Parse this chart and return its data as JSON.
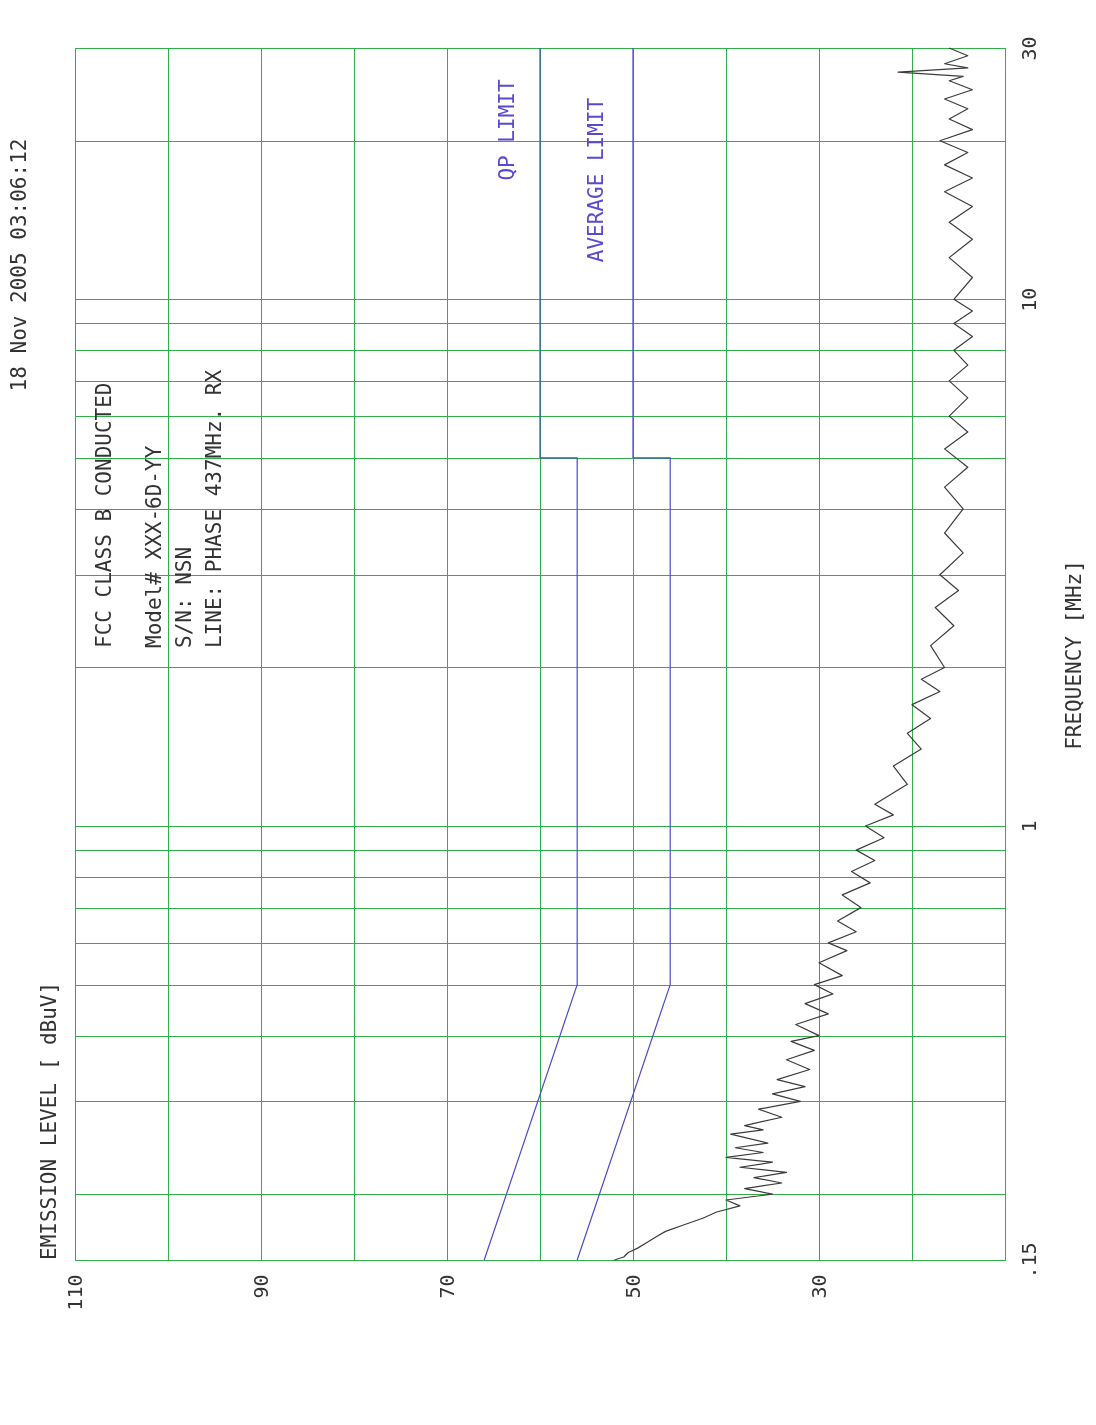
{
  "chart_data": {
    "type": "line",
    "subtitle": "18 Nov 2005   03:06:12",
    "title": "EMISSION LEVEL  [ dBuV]",
    "ylabel": "FREQUENCY  [MHz]",
    "annotations": [
      "FCC CLASS B      CONDUCTED",
      "Model# XXX-6D-YY",
      "S/N: NSN",
      "LINE:  PHASE     437MHz. RX",
      "QP LIMIT",
      "AVERAGE LIMIT"
    ],
    "log": "y",
    "grid": true,
    "marker": "none",
    "line_style": "solid",
    "ylim": [
      0.15,
      30
    ],
    "yticks": [
      {
        "value": 0.15,
        "label": ".15"
      },
      {
        "value": 0.2,
        "label": null
      },
      {
        "value": 0.3,
        "label": null
      },
      {
        "value": 0.4,
        "label": null
      },
      {
        "value": 0.5,
        "label": null
      },
      {
        "value": 0.6,
        "label": null
      },
      {
        "value": 0.7,
        "label": null
      },
      {
        "value": 0.8,
        "label": null
      },
      {
        "value": 0.9,
        "label": null
      },
      1,
      {
        "value": 2,
        "label": null
      },
      {
        "value": 3,
        "label": null
      },
      {
        "value": 4,
        "label": null
      },
      {
        "value": 5,
        "label": null
      },
      {
        "value": 6,
        "label": null
      },
      {
        "value": 7,
        "label": null
      },
      {
        "value": 8,
        "label": null
      },
      {
        "value": 9,
        "label": null
      },
      10,
      {
        "value": 20,
        "label": null
      },
      30
    ],
    "xlim": [
      110,
      10
    ],
    "xticks": [
      110,
      {
        "value": 100,
        "label": null
      },
      90,
      {
        "value": 80,
        "label": null
      },
      70,
      {
        "value": 60,
        "label": null
      },
      50,
      {
        "value": 40,
        "label": null
      },
      30,
      {
        "value": 20,
        "label": null
      },
      {
        "value": 10,
        "label": null
      }
    ],
    "series": [
      {
        "color": "#3c3c3c",
        "values": [
          0.15,
          0.152,
          0.155,
          0.158,
          0.162,
          0.166,
          0.17,
          0.175,
          0.18,
          0.185,
          0.19,
          0.195,
          0.2,
          0.205,
          0.21,
          0.215,
          0.22,
          0.225,
          0.23,
          0.235,
          0.24,
          0.245,
          0.25,
          0.26,
          0.265,
          0.27,
          0.28,
          0.29,
          0.3,
          0.31,
          0.32,
          0.33,
          0.345,
          0.36,
          0.375,
          0.39,
          0.4,
          0.42,
          0.44,
          0.46,
          0.48,
          0.5,
          0.52,
          0.55,
          0.58,
          0.6,
          0.63,
          0.66,
          0.7,
          0.74,
          0.78,
          0.82,
          0.86,
          0.9,
          0.95,
          1.0,
          1.05,
          1.1,
          1.2,
          1.3,
          1.4,
          1.5,
          1.6,
          1.7,
          1.8,
          1.9,
          2.0,
          2.2,
          2.4,
          2.6,
          2.8,
          3.0,
          3.3,
          3.6,
          4.0,
          4.4,
          4.8,
          5.2,
          5.6,
          6.0,
          6.5,
          7.0,
          7.5,
          8,
          8.5,
          9,
          9.5,
          10,
          11,
          12,
          13,
          14,
          15,
          16,
          17,
          18,
          19,
          20,
          21,
          22,
          23,
          24,
          25,
          26,
          26.5,
          27,
          27.5,
          28,
          29,
          30
        ],
        "x": [
          52,
          51,
          50.5,
          49.5,
          48.5,
          47.5,
          46.5,
          44.5,
          42.5,
          41,
          38.5,
          40,
          35,
          38,
          34,
          37,
          33.5,
          38.5,
          35,
          40,
          36,
          39,
          35.5,
          39.5,
          36,
          38,
          34,
          36.5,
          32,
          35,
          31.5,
          34.5,
          31,
          33.5,
          30.5,
          33,
          30,
          32.5,
          29,
          31.5,
          28.5,
          30.5,
          27.5,
          30,
          27,
          29,
          26,
          28,
          25.5,
          27.5,
          24.5,
          26.5,
          24,
          26,
          23,
          25,
          22,
          24,
          20.5,
          22,
          19,
          20.5,
          18,
          20,
          17,
          19,
          16.5,
          18,
          15.5,
          17.5,
          15,
          17,
          14.5,
          16.5,
          14.5,
          16.5,
          14,
          16.5,
          14,
          16,
          14,
          16,
          14,
          15.5,
          13.5,
          15.5,
          13.5,
          15.5,
          13.5,
          16,
          13.5,
          16,
          13.5,
          16.5,
          13.5,
          16.5,
          14,
          17,
          13.5,
          16,
          14,
          16.5,
          13.5,
          16,
          14.5,
          21.5,
          14,
          16.5,
          14,
          16
        ]
      },
      {
        "color": "#4a4acc",
        "values": [
          0.15,
          0.5,
          5,
          5,
          30
        ],
        "x": [
          66,
          56,
          56,
          60,
          60
        ]
      },
      {
        "color": "#4a4acc",
        "values": [
          0.15,
          0.5,
          5,
          5,
          30
        ],
        "x": [
          56,
          46,
          46,
          50,
          50
        ]
      }
    ]
  }
}
